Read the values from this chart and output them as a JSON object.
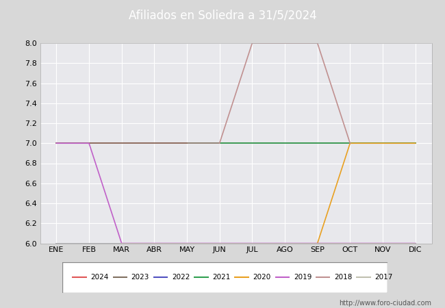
{
  "title": "Afiliados en Soliedra a 31/5/2024",
  "header_bg": "#5b8dd9",
  "months": [
    "ENE",
    "FEB",
    "MAR",
    "ABR",
    "MAY",
    "JUN",
    "JUL",
    "AGO",
    "SEP",
    "OCT",
    "NOV",
    "DIC"
  ],
  "ylim": [
    6.0,
    8.0
  ],
  "yticks": [
    6.0,
    6.2,
    6.4,
    6.6,
    6.8,
    7.0,
    7.2,
    7.4,
    7.6,
    7.8,
    8.0
  ],
  "series": [
    {
      "year": "2024",
      "color": "#e05555",
      "data": [
        [
          1,
          7
        ],
        [
          2,
          7
        ],
        [
          3,
          7
        ],
        [
          4,
          7
        ],
        [
          5,
          7
        ]
      ]
    },
    {
      "year": "2023",
      "color": "#807060",
      "data": [
        [
          1,
          7
        ],
        [
          2,
          7
        ],
        [
          3,
          7
        ],
        [
          4,
          7
        ],
        [
          5,
          7
        ],
        [
          6,
          7
        ],
        [
          7,
          7
        ],
        [
          8,
          7
        ],
        [
          9,
          7
        ],
        [
          10,
          7
        ],
        [
          11,
          7
        ],
        [
          12,
          7
        ]
      ]
    },
    {
      "year": "2022",
      "color": "#5050c0",
      "data": [
        [
          1,
          6
        ],
        [
          2,
          6
        ],
        [
          3,
          6
        ],
        [
          4,
          6
        ],
        [
          5,
          6
        ],
        [
          6,
          6
        ],
        [
          7,
          6
        ],
        [
          8,
          6
        ],
        [
          9,
          6
        ],
        [
          10,
          6
        ],
        [
          11,
          6
        ],
        [
          12,
          6
        ]
      ]
    },
    {
      "year": "2021",
      "color": "#30a050",
      "data": [
        [
          6,
          7
        ],
        [
          7,
          7
        ],
        [
          8,
          7
        ],
        [
          9,
          7
        ],
        [
          10,
          7
        ],
        [
          11,
          7
        ],
        [
          12,
          7
        ]
      ]
    },
    {
      "year": "2020",
      "color": "#e8a020",
      "data": [
        [
          9,
          6
        ],
        [
          10,
          7
        ],
        [
          11,
          7
        ],
        [
          12,
          7
        ]
      ]
    },
    {
      "year": "2019",
      "color": "#c060c8",
      "data": [
        [
          1,
          7
        ],
        [
          2,
          7
        ],
        [
          3,
          6
        ],
        [
          4,
          6
        ],
        [
          5,
          6
        ],
        [
          6,
          6
        ],
        [
          7,
          6
        ],
        [
          8,
          6
        ],
        [
          9,
          6
        ],
        [
          10,
          6
        ],
        [
          11,
          6
        ],
        [
          12,
          6
        ]
      ]
    },
    {
      "year": "2018",
      "color": "#c09090",
      "data": [
        [
          6,
          7
        ],
        [
          7,
          8
        ],
        [
          8,
          8
        ],
        [
          9,
          8
        ],
        [
          10,
          7
        ]
      ]
    },
    {
      "year": "2017",
      "color": "#c0c0b0",
      "data": [
        [
          1,
          6
        ],
        [
          2,
          6
        ],
        [
          3,
          6
        ],
        [
          4,
          6
        ],
        [
          5,
          6
        ],
        [
          6,
          6
        ],
        [
          7,
          6
        ],
        [
          8,
          6
        ],
        [
          9,
          6
        ],
        [
          10,
          6
        ],
        [
          11,
          6
        ],
        [
          12,
          6
        ]
      ]
    }
  ],
  "plot_bg": "#e8e8ec",
  "grid_color": "#ffffff",
  "outer_bg": "#d8d8d8",
  "footer_text": "http://www.foro-ciudad.com"
}
